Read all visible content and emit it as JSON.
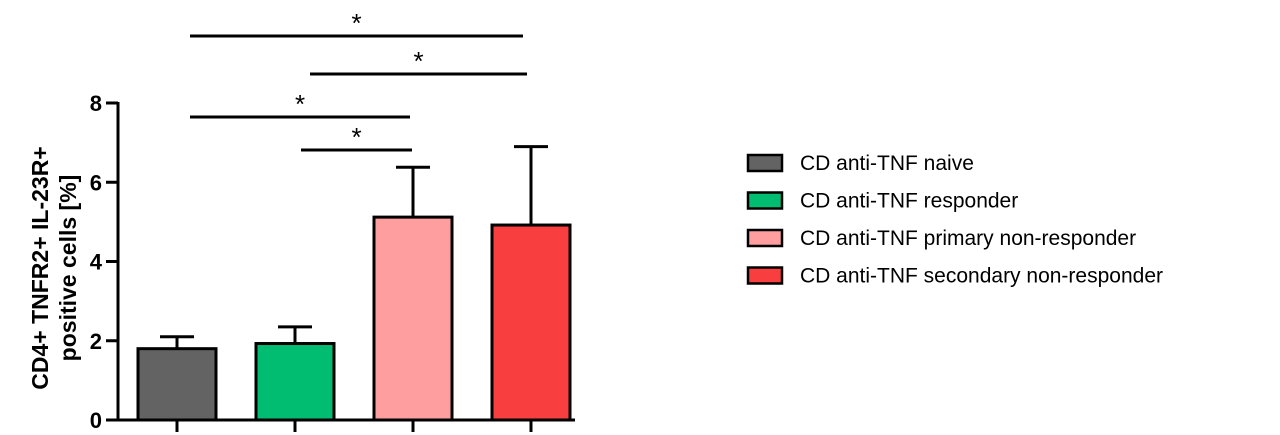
{
  "chart_data": {
    "type": "bar",
    "categories": [
      "CD anti-TNF naive",
      "CD anti-TNF responder",
      "CD anti-TNF primary non-responder",
      "CD anti-TNF secondary non-responder"
    ],
    "values": [
      1.8,
      1.93,
      5.12,
      4.92
    ],
    "errors": [
      0.3,
      0.42,
      1.26,
      1.98
    ],
    "colors": [
      "#636363",
      "#00bd72",
      "#ff9e9e",
      "#f83e3e"
    ],
    "ylabel_lines": [
      "CD4+ TNFR2+ IL-23R+",
      "positive cells [%]"
    ],
    "ylim": [
      0,
      8
    ],
    "yticks": [
      0,
      2,
      4,
      6,
      8
    ],
    "legend_position": "right",
    "significance": [
      {
        "from": 0,
        "to": 3,
        "label": "*"
      },
      {
        "from": 1,
        "to": 3,
        "label": "*"
      },
      {
        "from": 0,
        "to": 2,
        "label": "*"
      },
      {
        "from": 1,
        "to": 2,
        "label": "*"
      }
    ]
  }
}
